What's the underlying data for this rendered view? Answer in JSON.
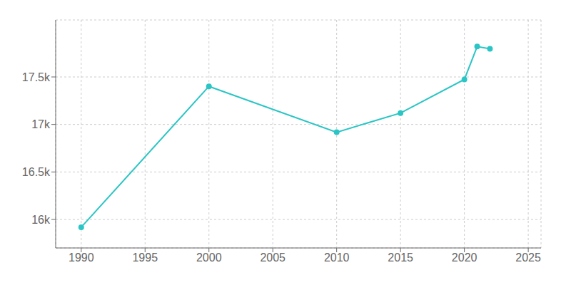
{
  "chart_data": {
    "type": "line",
    "x": [
      1990,
      2000,
      2010,
      2015,
      2020,
      2021,
      2022
    ],
    "values": [
      15918,
      17401,
      16918,
      17120,
      17474,
      17820,
      17797
    ],
    "color": "#2BC5C5",
    "marker": "circle",
    "xlim": [
      1988,
      2026
    ],
    "ylim": [
      15700,
      18100
    ],
    "xticks": [
      1990,
      1995,
      2000,
      2005,
      2010,
      2015,
      2020,
      2025
    ],
    "yticks": [
      {
        "value": 16000,
        "label": "16k"
      },
      {
        "value": 16500,
        "label": "16.5k"
      },
      {
        "value": 17000,
        "label": "17k"
      },
      {
        "value": 17500,
        "label": "17.5k"
      }
    ],
    "grid": true
  }
}
